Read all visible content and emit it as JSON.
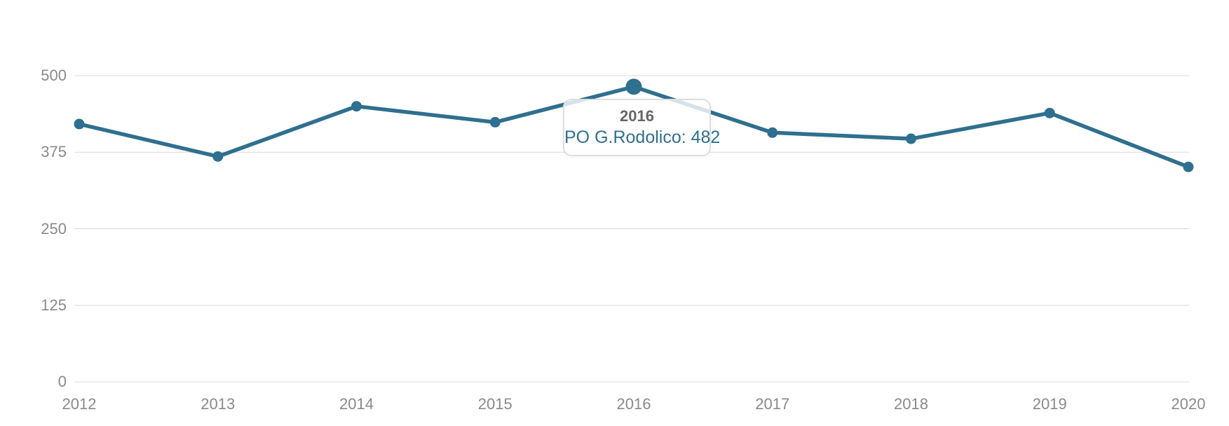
{
  "chart_data": {
    "type": "line",
    "categories": [
      "2012",
      "2013",
      "2014",
      "2015",
      "2016",
      "2017",
      "2018",
      "2019",
      "2020"
    ],
    "series": [
      {
        "name": "PO G.Rodolico",
        "values": [
          421,
          368,
          450,
          424,
          482,
          407,
          397,
          439,
          351
        ]
      }
    ],
    "y_ticks": [
      "0",
      "125",
      "250",
      "375",
      "500"
    ],
    "ylim": [
      0,
      500
    ],
    "grid": true,
    "legend": "none",
    "highlighted_index": 4,
    "line_color": "#2f6f8f",
    "grid_color": "#d9d9d9",
    "label_color": "#8a8a8a"
  },
  "tooltip": {
    "title": "2016",
    "text": "PO G.Rodolico: 482",
    "title_color": "#666666",
    "value_color": "#2f6f8f"
  }
}
